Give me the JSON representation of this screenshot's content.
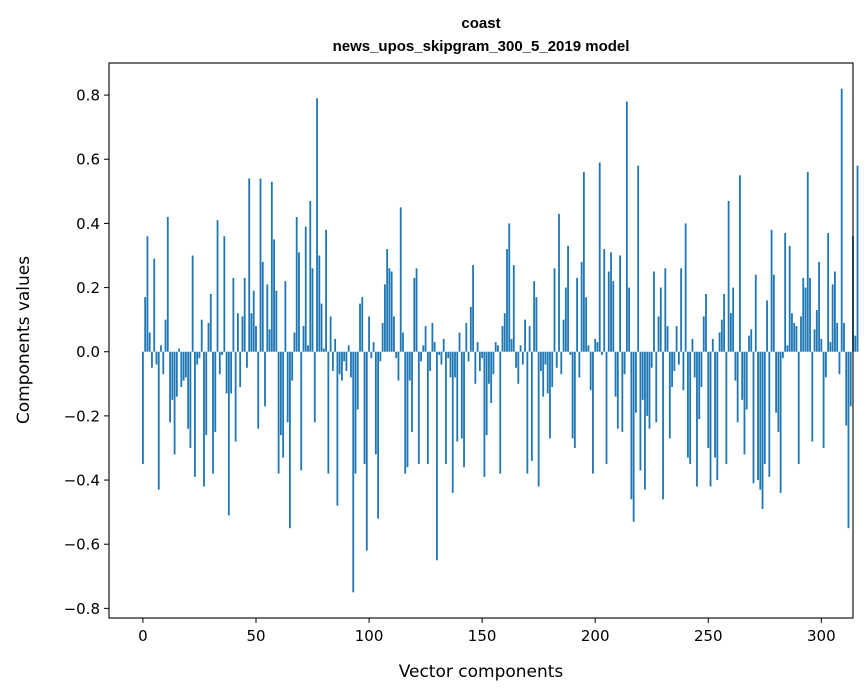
{
  "chart_data": {
    "type": "bar",
    "title": "coast",
    "subtitle": "news_upos_skipgram_300_5_2019 model",
    "xlabel": "Vector components",
    "ylabel": "Components values",
    "xlim": [
      -15,
      314
    ],
    "ylim": [
      -0.83,
      0.9
    ],
    "xticks": [
      0,
      50,
      100,
      150,
      200,
      250,
      300
    ],
    "xtick_labels": [
      "0",
      "50",
      "100",
      "150",
      "200",
      "250",
      "300"
    ],
    "yticks": [
      -0.8,
      -0.6,
      -0.4,
      -0.2,
      0.0,
      0.2,
      0.4,
      0.6,
      0.8
    ],
    "ytick_labels": [
      "−0.8",
      "−0.6",
      "−0.4",
      "−0.2",
      "0.0",
      "0.2",
      "0.4",
      "0.6",
      "0.8"
    ],
    "bar_color": "#1f77b4",
    "grid": false,
    "values": [
      -0.35,
      0.17,
      0.36,
      0.06,
      -0.05,
      0.29,
      -0.04,
      -0.43,
      0.02,
      -0.07,
      0.1,
      0.42,
      -0.22,
      -0.15,
      -0.32,
      -0.14,
      0.01,
      -0.11,
      -0.09,
      -0.08,
      -0.24,
      -0.3,
      0.3,
      -0.39,
      -0.04,
      -0.02,
      0.1,
      -0.42,
      -0.26,
      0.09,
      0.18,
      -0.38,
      -0.25,
      0.41,
      -0.07,
      -0.01,
      0.36,
      -0.13,
      -0.51,
      -0.13,
      0.23,
      -0.28,
      0.12,
      -0.11,
      0.11,
      0.23,
      -0.05,
      0.54,
      0.12,
      0.19,
      0.08,
      -0.24,
      0.54,
      0.28,
      -0.17,
      0.21,
      0.07,
      0.53,
      0.35,
      0.19,
      -0.38,
      -0.26,
      -0.33,
      0.22,
      -0.22,
      -0.55,
      -0.09,
      0.06,
      0.42,
      0.31,
      -0.37,
      0.08,
      0.39,
      0.02,
      0.47,
      0.26,
      -0.22,
      0.79,
      0.3,
      0.15,
      0.01,
      0.38,
      -0.38,
      0.11,
      -0.06,
      0.04,
      -0.48,
      -0.07,
      -0.09,
      -0.03,
      -0.06,
      0.02,
      -0.08,
      -0.75,
      -0.38,
      -0.18,
      0.15,
      0.17,
      -0.35,
      -0.62,
      0.11,
      -0.02,
      0.03,
      -0.32,
      -0.52,
      -0.03,
      0.09,
      0.21,
      0.32,
      0.26,
      0.25,
      0.11,
      -0.02,
      -0.09,
      0.45,
      0.06,
      -0.38,
      -0.36,
      -0.09,
      -0.25,
      0.23,
      0.26,
      -0.35,
      -0.03,
      0.02,
      0.08,
      -0.35,
      -0.06,
      0.09,
      0.03,
      -0.65,
      -0.01,
      -0.04,
      0.04,
      -0.35,
      -0.02,
      -0.08,
      -0.44,
      -0.08,
      -0.28,
      0.06,
      -0.27,
      -0.36,
      0.09,
      -0.03,
      0.14,
      0.27,
      -0.1,
      0.03,
      -0.06,
      -0.02,
      -0.39,
      -0.26,
      -0.1,
      -0.16,
      -0.07,
      0.03,
      0.02,
      -0.38,
      0.08,
      0.12,
      0.32,
      0.4,
      0.04,
      0.27,
      -0.05,
      -0.1,
      0.02,
      -0.04,
      0.1,
      -0.38,
      0.08,
      -0.34,
      0.22,
      0.17,
      -0.42,
      -0.06,
      -0.14,
      -0.04,
      -0.13,
      -0.27,
      -0.11,
      0.26,
      -0.05,
      0.43,
      -0.07,
      0.1,
      0.2,
      0.33,
      -0.01,
      -0.27,
      -0.3,
      0.23,
      -0.08,
      0.28,
      0.56,
      0.17,
      0.02,
      -0.12,
      -0.38,
      0.04,
      0.03,
      0.59,
      -0.01,
      0.32,
      -0.35,
      0.25,
      0.31,
      0.22,
      -0.14,
      -0.24,
      0.3,
      -0.25,
      -0.07,
      0.78,
      0.2,
      -0.46,
      -0.53,
      -0.19,
      0.58,
      -0.37,
      -0.15,
      -0.43,
      -0.2,
      -0.24,
      -0.05,
      0.25,
      -0.22,
      0.11,
      0.2,
      -0.46,
      0.26,
      0.08,
      -0.27,
      -0.11,
      -0.06,
      0.08,
      -0.04,
      0.26,
      -0.12,
      0.4,
      -0.33,
      -0.35,
      0.04,
      -0.08,
      -0.42,
      -0.21,
      -0.11,
      0.11,
      0.18,
      -0.3,
      -0.42,
      0.04,
      -0.33,
      -0.4,
      0.06,
      0.1,
      0.18,
      -0.35,
      0.47,
      0.12,
      0.2,
      -0.09,
      -0.22,
      0.55,
      -0.15,
      -0.32,
      -0.18,
      0.05,
      0.07,
      -0.41,
      0.24,
      -0.4,
      -0.43,
      -0.49,
      -0.35,
      0.16,
      -0.39,
      0.38,
      0.24,
      -0.19,
      -0.25,
      -0.44,
      -0.02,
      0.37,
      0.02,
      0.33,
      0.12,
      0.09,
      0.08,
      -0.35,
      0.11,
      0.23,
      0.2,
      0.56,
      0.23,
      -0.28,
      0.07,
      0.13,
      0.28,
      0.04,
      -0.3,
      -0.08,
      0.37,
      0.03,
      0.21,
      0.25,
      0.09,
      -0.07,
      0.82,
      0.09,
      -0.23,
      -0.55,
      -0.17,
      0.36,
      0.05,
      0.58
    ]
  }
}
